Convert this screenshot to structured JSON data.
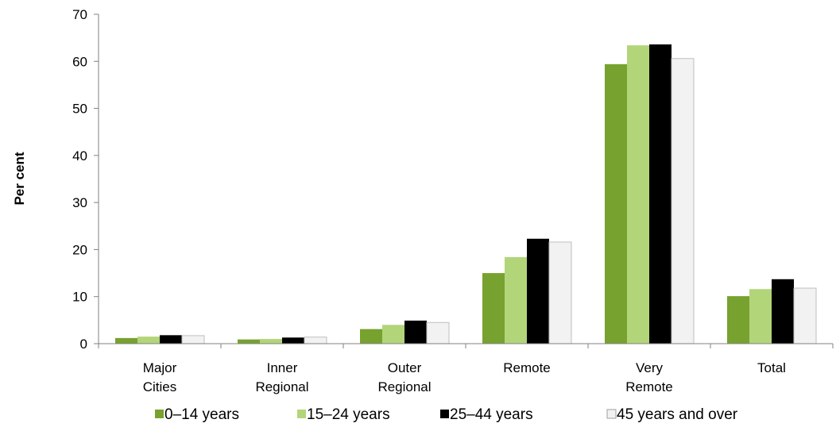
{
  "chart_data": {
    "type": "bar",
    "title": "",
    "xlabel": "",
    "ylabel": "Per cent",
    "ylim": [
      0,
      70
    ],
    "yticks": [
      0,
      10,
      20,
      30,
      40,
      50,
      60,
      70
    ],
    "grid": false,
    "legend": "bottom",
    "categories": [
      [
        "Major",
        "Cities"
      ],
      [
        "Inner",
        "Regional"
      ],
      [
        "Outer",
        "Regional"
      ],
      [
        "Remote"
      ],
      [
        "Very",
        "Remote"
      ],
      [
        "Total"
      ]
    ],
    "series": [
      {
        "name": "0–14 years",
        "color": "#77a22f",
        "values": [
          1.2,
          0.9,
          3.1,
          15.0,
          59.4,
          10.1
        ]
      },
      {
        "name": "15–24 years",
        "color": "#b3d57a",
        "values": [
          1.5,
          1.0,
          4.0,
          18.4,
          63.4,
          11.6
        ]
      },
      {
        "name": "25–44 years",
        "color": "#000000",
        "values": [
          1.8,
          1.3,
          4.9,
          22.3,
          63.6,
          13.7
        ]
      },
      {
        "name": "45 years and over",
        "color": "#f2f2f2",
        "values": [
          1.7,
          1.4,
          4.5,
          21.6,
          60.6,
          11.8
        ]
      }
    ]
  }
}
